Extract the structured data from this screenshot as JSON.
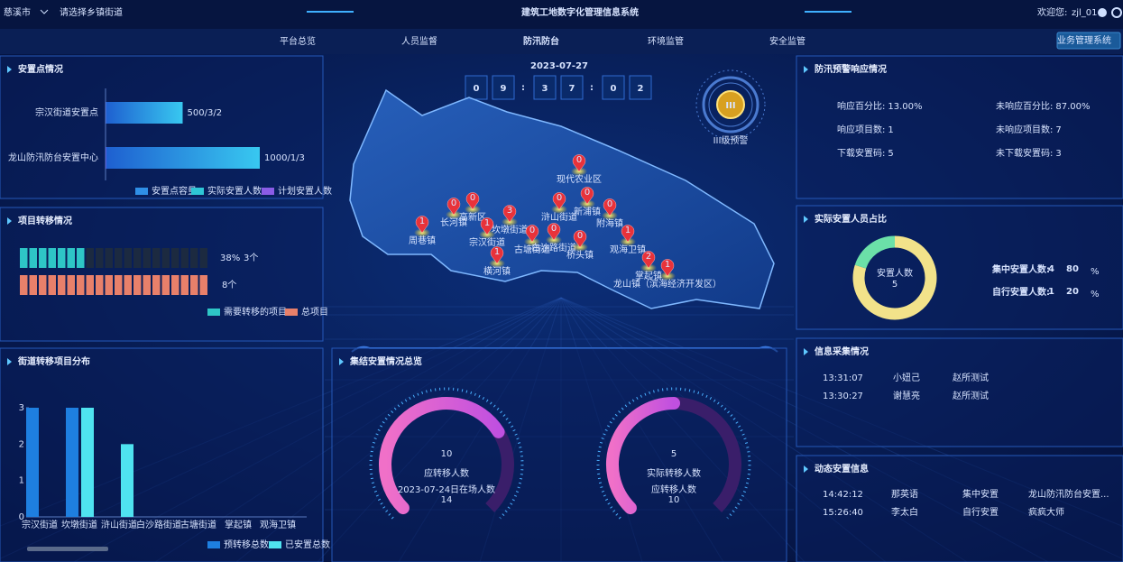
{
  "header": {
    "city": "慈溪市",
    "town_select": "请选择乡镇街道",
    "title": "建筑工地数字化管理信息系统",
    "welcome": "欢迎您:",
    "user": "zjl_01",
    "system_button": "业务管理系统"
  },
  "nav": {
    "items": [
      "平台总览",
      "人员监督",
      "防汛防台",
      "环境监管",
      "安全监管"
    ],
    "active": 2
  },
  "clock": {
    "date": "2023-07-27",
    "digits": [
      "0",
      "9",
      "3",
      "7",
      "0",
      "2"
    ],
    "separator": ":"
  },
  "warning_badge": {
    "icon": "III",
    "label": "III级预警"
  },
  "map": {
    "towns": [
      {
        "name": "现代农业区",
        "count": 0
      },
      {
        "name": "长河镇",
        "count": 0
      },
      {
        "name": "高新区",
        "count": 0
      },
      {
        "name": "周巷镇",
        "count": 1
      },
      {
        "name": "宗汉街道",
        "count": 1
      },
      {
        "name": "坎墩街道",
        "count": 3
      },
      {
        "name": "新浦镇",
        "count": 0
      },
      {
        "name": "浒山街道",
        "count": 0
      },
      {
        "name": "附海镇",
        "count": 0
      },
      {
        "name": "古塘街道",
        "count": 0
      },
      {
        "name": "白沙路街道",
        "count": 0
      },
      {
        "name": "观海卫镇",
        "count": 1
      },
      {
        "name": "桥头镇",
        "count": 0
      },
      {
        "name": "横河镇",
        "count": 1
      },
      {
        "name": "掌起镇",
        "count": 2
      },
      {
        "name": "龙山镇（滨海经济开发区）",
        "count": 1
      }
    ]
  },
  "chart_data": [
    {
      "type": "hbar",
      "title": "安置点情况",
      "categories": [
        "宗汉街道安置点",
        "龙山防汛防台安置中心"
      ],
      "series": [
        {
          "name": "安置点容量",
          "color": "#2f8fe6",
          "values": [
            500,
            1000
          ]
        },
        {
          "name": "实际安置人数",
          "color": "#2ec6d6",
          "values": [
            3,
            1
          ]
        },
        {
          "name": "计划安置人数",
          "color": "#8a5ce6",
          "values": [
            2,
            3
          ]
        }
      ],
      "value_labels": [
        "500/3/2",
        "1000/1/3"
      ]
    },
    {
      "type": "progress",
      "title": "项目转移情况",
      "percent": "38%",
      "series": [
        {
          "name": "需要转移的项目",
          "color": "#2ec6c6",
          "values": [
            3
          ],
          "value_labels": [
            "3个"
          ]
        },
        {
          "name": "总项目",
          "color": "#e8806a",
          "values": [
            8
          ],
          "value_labels": [
            "8个"
          ]
        }
      ]
    },
    {
      "type": "bar",
      "title": "街道转移项目分布",
      "categories": [
        "宗汉街道",
        "坎墩街道",
        "浒山街道",
        "白沙路街道",
        "古塘街道",
        "掌起镇",
        "观海卫镇"
      ],
      "series": [
        {
          "name": "预转移总数",
          "color": "#1e7fe0",
          "values": [
            3,
            3,
            0,
            0,
            0,
            0,
            0
          ]
        },
        {
          "name": "已安置总数",
          "color": "#4fe3f0",
          "values": [
            0,
            3,
            2,
            0,
            0,
            0,
            0
          ]
        }
      ],
      "ylim": [
        0,
        3
      ],
      "yticks": [
        0,
        1,
        2,
        3
      ]
    },
    {
      "type": "donut",
      "title": "实际安置人员占比",
      "center_label": "安置人数",
      "total": 5,
      "unit": "%",
      "series": [
        {
          "name": "集中安置人数:",
          "color": "#f2e28a",
          "count": 4,
          "percent": 80
        },
        {
          "name": "自行安置人数:",
          "color": "#6be0a8",
          "count": 1,
          "percent": 20
        }
      ]
    },
    {
      "type": "gauge",
      "title": "集结安置情况总览",
      "gauges": [
        {
          "value": 10,
          "label": "应转移人数",
          "sub_label": "2023-07-24日在场人数",
          "sub_value": 14
        },
        {
          "value": 5,
          "label": "实际转移人数",
          "sub_label": "应转移人数",
          "sub_value": 10
        }
      ]
    }
  ],
  "response": {
    "title": "防汛预警响应情况",
    "items": [
      {
        "label": "响应百分比:",
        "value": "13.00%"
      },
      {
        "label": "未响应百分比:",
        "value": "87.00%"
      },
      {
        "label": "响应项目数:",
        "value": "1"
      },
      {
        "label": "未响应项目数:",
        "value": "7"
      },
      {
        "label": "下载安置码:",
        "value": "5"
      },
      {
        "label": "未下载安置码:",
        "value": "3"
      }
    ]
  },
  "collection": {
    "title": "信息采集情况",
    "rows": [
      [
        "13:31:07",
        "小妞己",
        "赵所测试"
      ],
      [
        "13:30:27",
        "谢慧亮",
        "赵所测试"
      ]
    ]
  },
  "dynamic": {
    "title": "动态安置信息",
    "rows": [
      [
        "14:42:12",
        "那英语",
        "集中安置",
        "龙山防汛防台安置..."
      ],
      [
        "15:26:40",
        "李太白",
        "自行安置",
        "疯疯大师"
      ]
    ]
  }
}
